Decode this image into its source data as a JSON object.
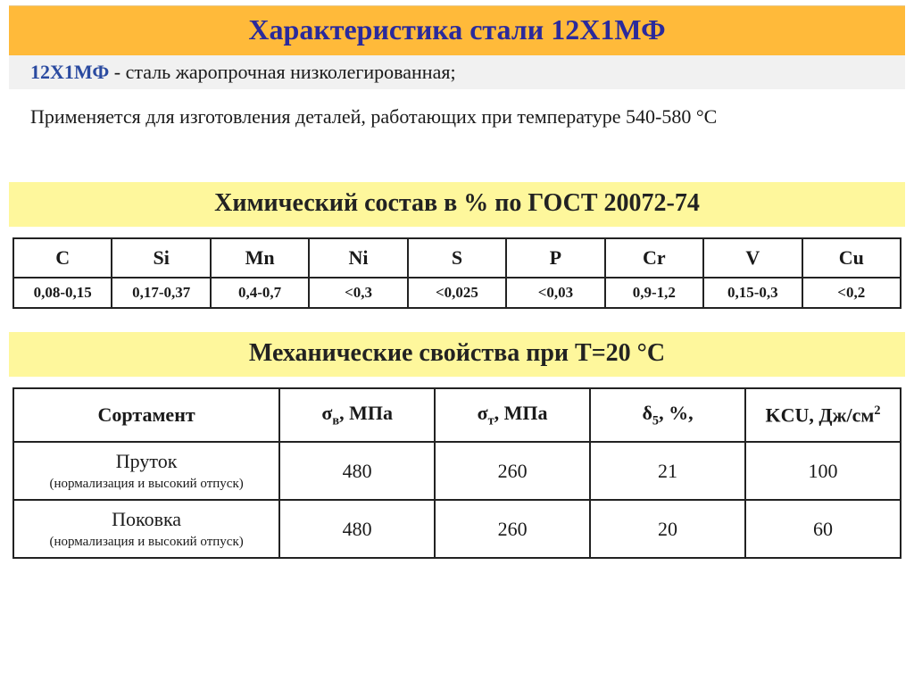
{
  "title": "Характеристика стали 12Х1МФ",
  "subtitle_mark": "12Х1МФ",
  "subtitle_rest": " - сталь жаропрочная низколегированная;",
  "usage": "Применяется для изготовления деталей, работающих при температуре 540-580 °С",
  "chem_heading": "Химический состав в % по ГОСТ 20072-74",
  "chem_table": {
    "headers": [
      "C",
      "Si",
      "Mn",
      "Ni",
      "S",
      "P",
      "Cr",
      "V",
      "Cu"
    ],
    "values": [
      "0,08-0,15",
      "0,17-0,37",
      "0,4-0,7",
      "<0,3",
      "<0,025",
      "<0,03",
      "0,9-1,2",
      "0,15-0,3",
      "<0,2"
    ]
  },
  "mech_heading": "Механические свойства при Т=20 °С",
  "mech_table": {
    "col_widths": [
      "30%",
      "17.5%",
      "17.5%",
      "17.5%",
      "17.5%"
    ],
    "columns": [
      {
        "label_html": "Сортамент"
      },
      {
        "label_html": "σ<sub>в</sub>, МПа"
      },
      {
        "label_html": "σ<sub>т</sub>, МПа"
      },
      {
        "label_html": "δ<sub>5</sub>,  %,"
      },
      {
        "label_html": "KCU, Дж/см<sup>2</sup>"
      }
    ],
    "rows": [
      {
        "product": "Пруток",
        "note": "(нормализация и высокий отпуск)",
        "values": [
          "480",
          "260",
          "21",
          "100"
        ]
      },
      {
        "product": "Поковка",
        "note": "(нормализация и высокий отпуск)",
        "values": [
          "480",
          "260",
          "20",
          "60"
        ]
      }
    ]
  },
  "colors": {
    "title_bg": "#ffba3a",
    "title_fg": "#2a2a9c",
    "section_bg": "#fef79c",
    "subtitle_bg": "#f1f1f1",
    "mark_fg": "#2a4aa0",
    "border": "#222222",
    "page_bg": "#ffffff"
  }
}
